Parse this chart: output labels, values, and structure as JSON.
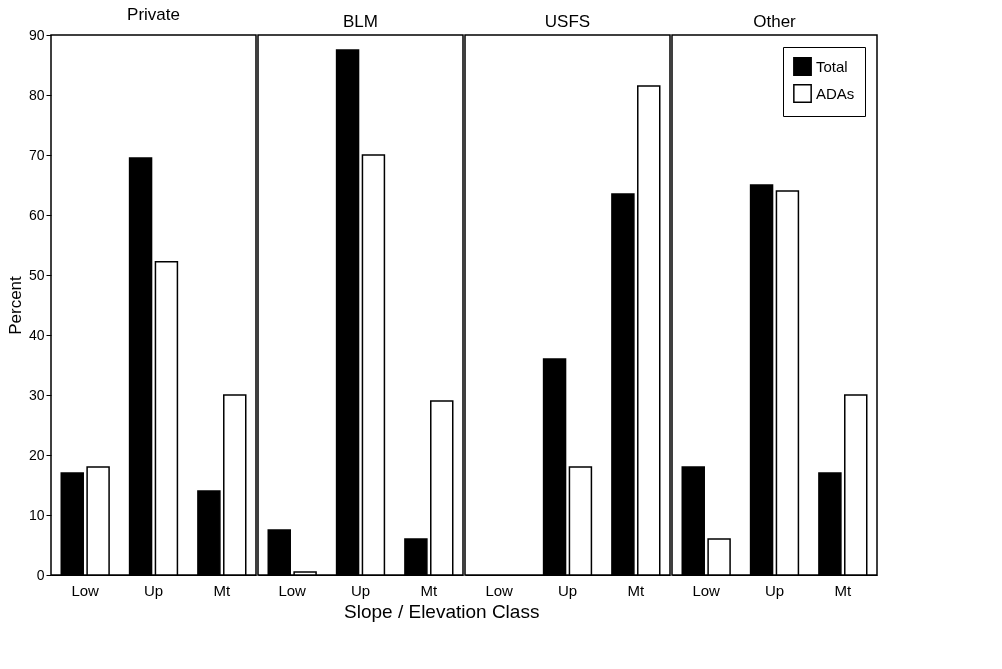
{
  "chart_data": [
    {
      "type": "bar",
      "title": "Private",
      "xlabel": "Slope / Elevation Class",
      "ylabel": "Percent",
      "categories": [
        "Low",
        "Up",
        "Mt"
      ],
      "ylim": [
        0,
        90
      ],
      "yticks": [
        0,
        10,
        20,
        30,
        40,
        50,
        60,
        70,
        80,
        90
      ],
      "series": [
        {
          "color": "#000000",
          "values": [
            17,
            69.5,
            14
          ]
        },
        {
          "color": "#ffffff",
          "values": [
            18,
            52.2,
            30
          ]
        }
      ]
    },
    {
      "type": "bar",
      "title": "BLM",
      "categories": [
        "Low",
        "Up",
        "Mt"
      ],
      "ylim": [
        0,
        90
      ],
      "yticks": [
        0,
        10,
        20,
        30,
        40,
        50,
        60,
        70,
        80,
        90
      ],
      "tick_labels": "x",
      "series": [
        {
          "color": "#000000",
          "values": [
            7.5,
            87.5,
            6
          ]
        },
        {
          "color": "#ffffff",
          "values": [
            0.5,
            70,
            29
          ]
        }
      ]
    },
    {
      "type": "bar",
      "title": "USFS",
      "categories": [
        "Low",
        "Up",
        "Mt"
      ],
      "ylim": [
        0,
        90
      ],
      "yticks": [
        0,
        10,
        20,
        30,
        40,
        50,
        60,
        70,
        80,
        90
      ],
      "tick_labels": "x",
      "series": [
        {
          "color": "#000000",
          "values": [
            null,
            36,
            63.5
          ]
        },
        {
          "color": "#ffffff",
          "values": [
            null,
            18,
            81.5
          ]
        }
      ]
    },
    {
      "type": "bar",
      "title": "Other",
      "categories": [
        "Low",
        "Up",
        "Mt"
      ],
      "ylim": [
        0,
        90
      ],
      "yticks": [
        0,
        10,
        20,
        30,
        40,
        50,
        60,
        70,
        80,
        90
      ],
      "tick_labels": "x",
      "legend": "top right",
      "series": [
        {
          "name": "Total",
          "color": "#000000",
          "values": [
            18,
            65,
            17
          ]
        },
        {
          "name": "ADAs",
          "color": "#ffffff",
          "values": [
            6,
            64,
            30
          ]
        }
      ]
    }
  ]
}
